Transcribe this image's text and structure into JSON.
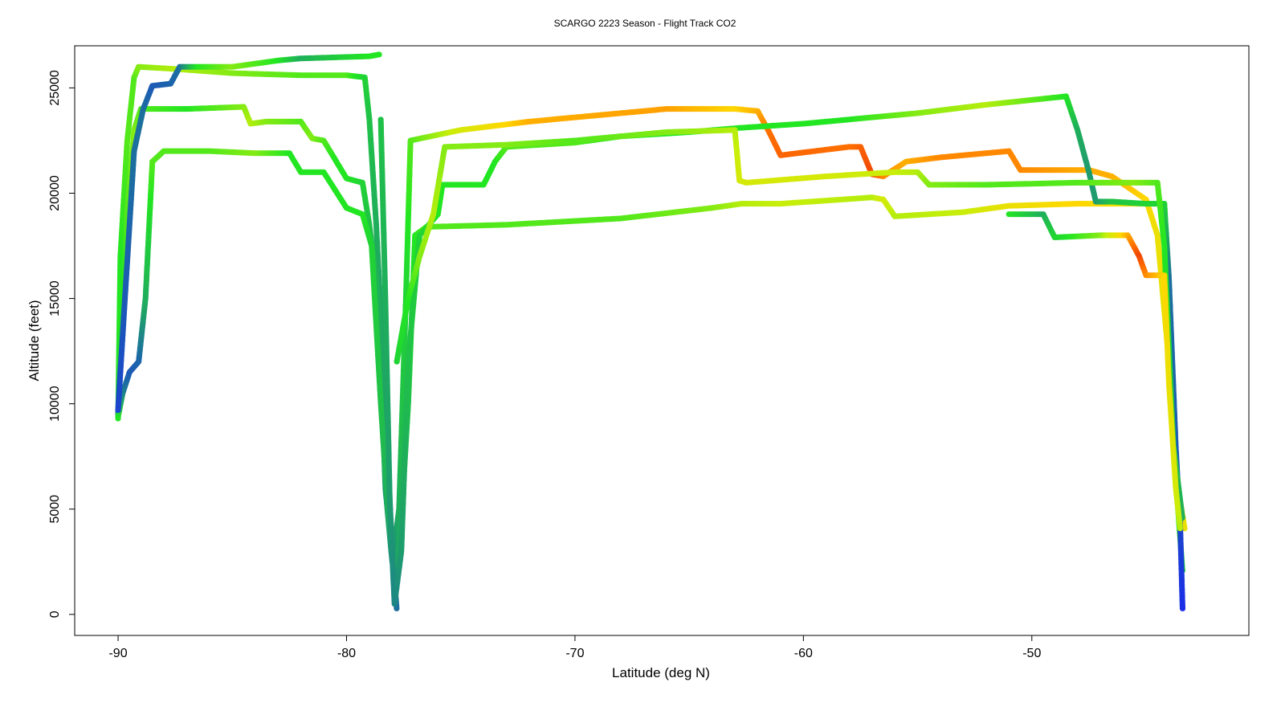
{
  "chart_data": {
    "type": "line",
    "title": "SCARGO 2223 Season - Flight Track CO2",
    "xlabel": "Latitude (deg N)",
    "ylabel": "Altitude (feet)",
    "xlim": [
      -91.9,
      -40.5
    ],
    "ylim": [
      -1000,
      27000
    ],
    "xticks": [
      -90,
      -80,
      -70,
      -60,
      -50
    ],
    "yticks": [
      0,
      5000,
      10000,
      15000,
      20000,
      25000
    ],
    "grid": false,
    "legend": "none",
    "colors": {
      "low": "#1a2ee6",
      "mid_low": "#1e9c6e",
      "mid": "#22e622",
      "mid_high": "#c8ee0a",
      "high": "#ffd700",
      "very_high": "#ff7000",
      "peak": "#e62a0a"
    },
    "series": [
      {
        "points": [
          [
            -90.0,
            9300
          ],
          [
            -89.9,
            17000
          ],
          [
            -89.6,
            22500
          ],
          [
            -89.3,
            25500
          ],
          [
            -89.1,
            26000
          ],
          [
            -87.5,
            25900
          ],
          [
            -85.0,
            25700
          ],
          [
            -82.0,
            25600
          ],
          [
            -80.0,
            25600
          ],
          [
            -79.2,
            25500
          ],
          [
            -79.0,
            23500
          ],
          [
            -78.7,
            18500
          ],
          [
            -78.3,
            10000
          ],
          [
            -78.0,
            3000
          ],
          [
            -77.8,
            200
          ]
        ],
        "co2": [
          0.45,
          0.45,
          0.5,
          0.5,
          0.55,
          0.6,
          0.55,
          0.5,
          0.5,
          0.4,
          0.35,
          0.3,
          0.25,
          0.2,
          0.15
        ]
      },
      {
        "points": [
          [
            -90.0,
            9500
          ],
          [
            -89.9,
            12000
          ],
          [
            -89.6,
            19000
          ],
          [
            -89.3,
            23000
          ],
          [
            -89.0,
            24000
          ],
          [
            -87.0,
            24000
          ],
          [
            -84.5,
            24100
          ],
          [
            -84.2,
            23300
          ],
          [
            -83.5,
            23400
          ],
          [
            -82.0,
            23400
          ],
          [
            -81.5,
            22600
          ],
          [
            -81.0,
            22500
          ],
          [
            -80.5,
            21600
          ],
          [
            -80.0,
            20700
          ],
          [
            -79.3,
            20500
          ],
          [
            -79.0,
            18500
          ],
          [
            -78.6,
            15000
          ],
          [
            -78.3,
            6000
          ],
          [
            -78.0,
            2500
          ],
          [
            -77.7,
            5000
          ],
          [
            -77.4,
            15000
          ],
          [
            -77.2,
            22500
          ],
          [
            -75.0,
            23000
          ],
          [
            -72.0,
            23400
          ],
          [
            -66.0,
            24000
          ],
          [
            -63.0,
            24000
          ],
          [
            -62.0,
            23900
          ],
          [
            -61.5,
            22900
          ],
          [
            -61.0,
            21800
          ],
          [
            -58.0,
            22200
          ],
          [
            -57.5,
            22200
          ],
          [
            -57.0,
            20900
          ],
          [
            -56.5,
            20800
          ],
          [
            -55.5,
            21500
          ],
          [
            -54.0,
            21700
          ],
          [
            -51.0,
            22000
          ],
          [
            -50.5,
            21100
          ],
          [
            -47.5,
            21100
          ],
          [
            -46.5,
            20800
          ],
          [
            -45.0,
            19700
          ],
          [
            -44.5,
            18000
          ],
          [
            -44.0,
            12000
          ],
          [
            -43.6,
            6000
          ],
          [
            -43.3,
            4000
          ]
        ],
        "co2": [
          0.1,
          0.4,
          0.5,
          0.55,
          0.5,
          0.45,
          0.55,
          0.6,
          0.55,
          0.5,
          0.55,
          0.5,
          0.45,
          0.45,
          0.4,
          0.35,
          0.3,
          0.25,
          0.2,
          0.3,
          0.4,
          0.5,
          0.65,
          0.8,
          0.82,
          0.75,
          0.8,
          0.88,
          0.9,
          0.88,
          0.9,
          0.95,
          0.85,
          0.8,
          0.85,
          0.85,
          0.85,
          0.8,
          0.8,
          0.75,
          0.7,
          0.7,
          0.75,
          0.7
        ]
      },
      {
        "points": [
          [
            -90.0,
            9400
          ],
          [
            -89.8,
            10500
          ],
          [
            -89.5,
            11500
          ],
          [
            -89.1,
            12000
          ],
          [
            -88.8,
            15000
          ],
          [
            -88.5,
            21500
          ],
          [
            -88.0,
            22000
          ],
          [
            -86.0,
            22000
          ],
          [
            -84.0,
            21900
          ],
          [
            -82.5,
            21900
          ],
          [
            -82.0,
            21000
          ],
          [
            -81.0,
            21000
          ],
          [
            -80.0,
            19300
          ],
          [
            -79.3,
            19000
          ],
          [
            -78.9,
            17500
          ],
          [
            -78.5,
            10000
          ],
          [
            -78.2,
            5000
          ],
          [
            -77.9,
            1500
          ],
          [
            -77.6,
            4500
          ],
          [
            -77.3,
            10000
          ],
          [
            -77.0,
            18000
          ],
          [
            -76.5,
            18400
          ],
          [
            -73.0,
            18500
          ],
          [
            -68.0,
            18800
          ],
          [
            -64.0,
            19300
          ],
          [
            -62.7,
            19500
          ],
          [
            -61.0,
            19500
          ],
          [
            -57.0,
            19800
          ],
          [
            -56.5,
            19700
          ],
          [
            -56.0,
            18900
          ],
          [
            -53.0,
            19100
          ],
          [
            -51.0,
            19400
          ],
          [
            -48.0,
            19500
          ],
          [
            -46.0,
            19500
          ],
          [
            -44.2,
            19500
          ],
          [
            -44.0,
            15000
          ],
          [
            -43.6,
            5000
          ],
          [
            -43.4,
            2000
          ]
        ],
        "co2": [
          0.45,
          0.2,
          0.1,
          0.12,
          0.3,
          0.5,
          0.5,
          0.5,
          0.55,
          0.45,
          0.45,
          0.45,
          0.45,
          0.45,
          0.4,
          0.35,
          0.3,
          0.25,
          0.3,
          0.35,
          0.45,
          0.5,
          0.5,
          0.5,
          0.55,
          0.6,
          0.62,
          0.6,
          0.65,
          0.6,
          0.62,
          0.7,
          0.75,
          0.72,
          0.65,
          0.5,
          0.45,
          0.4
        ]
      },
      {
        "points": [
          [
            -90.0,
            9700
          ],
          [
            -89.7,
            15000
          ],
          [
            -89.3,
            22000
          ],
          [
            -88.9,
            24000
          ],
          [
            -88.5,
            25100
          ],
          [
            -87.7,
            25200
          ],
          [
            -87.3,
            26000
          ],
          [
            -86.5,
            26000
          ],
          [
            -85.0,
            26000
          ],
          [
            -83.0,
            26300
          ],
          [
            -82.0,
            26400
          ],
          [
            -79.0,
            26500
          ],
          [
            -78.5,
            26600
          ]
        ],
        "co2": [
          0.05,
          0.1,
          0.15,
          0.15,
          0.1,
          0.12,
          0.15,
          0.45,
          0.55,
          0.45,
          0.3,
          0.45,
          0.45
        ]
      },
      {
        "points": [
          [
            -78.5,
            23500
          ],
          [
            -78.3,
            15000
          ],
          [
            -78.1,
            5000
          ],
          [
            -77.9,
            500
          ],
          [
            -77.6,
            3000
          ],
          [
            -77.3,
            12000
          ],
          [
            -76.8,
            18000
          ],
          [
            -76.0,
            19000
          ],
          [
            -75.8,
            20400
          ],
          [
            -74.0,
            20400
          ],
          [
            -73.5,
            21500
          ],
          [
            -73.0,
            22200
          ],
          [
            -70.0,
            22400
          ],
          [
            -68.0,
            22700
          ],
          [
            -65.0,
            22900
          ],
          [
            -62.8,
            23100
          ],
          [
            -60.0,
            23300
          ],
          [
            -58.0,
            23500
          ],
          [
            -55.0,
            23800
          ],
          [
            -52.0,
            24200
          ],
          [
            -48.5,
            24600
          ],
          [
            -48.0,
            23000
          ],
          [
            -47.5,
            21000
          ],
          [
            -47.2,
            19600
          ],
          [
            -46.5,
            19600
          ],
          [
            -45.0,
            19500
          ],
          [
            -44.2,
            19500
          ],
          [
            -44.0,
            16000
          ],
          [
            -43.7,
            8000
          ],
          [
            -43.5,
            4000
          ],
          [
            -43.4,
            200
          ]
        ],
        "co2": [
          0.35,
          0.3,
          0.25,
          0.2,
          0.25,
          0.35,
          0.4,
          0.45,
          0.45,
          0.45,
          0.45,
          0.5,
          0.5,
          0.45,
          0.45,
          0.45,
          0.45,
          0.45,
          0.55,
          0.6,
          0.45,
          0.3,
          0.25,
          0.25,
          0.35,
          0.4,
          0.4,
          0.15,
          0.1,
          0.05,
          0.0
        ]
      },
      {
        "points": [
          [
            -77.8,
            12000
          ],
          [
            -77.3,
            15000
          ],
          [
            -76.8,
            17000
          ],
          [
            -76.2,
            19000
          ],
          [
            -75.7,
            22200
          ],
          [
            -73.0,
            22300
          ],
          [
            -70.0,
            22500
          ],
          [
            -66.0,
            22900
          ],
          [
            -63.0,
            23000
          ],
          [
            -62.8,
            20600
          ],
          [
            -62.5,
            20500
          ],
          [
            -59.0,
            20800
          ],
          [
            -56.0,
            21000
          ],
          [
            -55.0,
            21000
          ],
          [
            -54.5,
            20400
          ],
          [
            -52.0,
            20400
          ],
          [
            -48.0,
            20500
          ],
          [
            -45.5,
            20500
          ],
          [
            -44.5,
            20500
          ],
          [
            -44.2,
            17500
          ],
          [
            -43.8,
            8000
          ],
          [
            -43.4,
            4500
          ]
        ],
        "co2": [
          0.4,
          0.45,
          0.55,
          0.6,
          0.55,
          0.55,
          0.5,
          0.55,
          0.6,
          0.65,
          0.65,
          0.65,
          0.62,
          0.6,
          0.55,
          0.5,
          0.5,
          0.55,
          0.5,
          0.45,
          0.35,
          0.3
        ]
      },
      {
        "points": [
          [
            -51.0,
            19000
          ],
          [
            -49.5,
            19000
          ],
          [
            -49.0,
            17900
          ],
          [
            -47.0,
            18000
          ],
          [
            -45.8,
            18000
          ],
          [
            -45.3,
            17000
          ],
          [
            -45.0,
            16100
          ],
          [
            -44.2,
            16100
          ],
          [
            -44.0,
            11000
          ],
          [
            -43.7,
            6000
          ],
          [
            -43.5,
            4000
          ]
        ],
        "co2": [
          0.45,
          0.3,
          0.4,
          0.55,
          0.8,
          0.95,
          0.85,
          0.75,
          0.7,
          0.65,
          0.6
        ]
      }
    ]
  }
}
